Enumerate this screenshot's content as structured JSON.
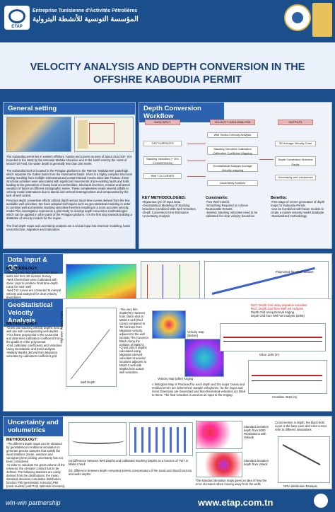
{
  "header": {
    "logo_text": "ETAP",
    "org_fr": "Entreprise Tunisienne d'Activités Pétrolières",
    "org_ar": "المؤسسة التونسية للأنشطة البترولية"
  },
  "title": "VELOCITY ANALYSIS AND DEPTH CONVERSION IN THE OFFSHRE KABOUDIA PERMIT",
  "general": {
    "head": "General setting",
    "p1": "The Kaboudia permit lies in eastern offshore Tunisia and covers an area of about 3154 km². It is bounded to the West by the Monastir-Mahdia shoreline and to the North east by the Horst of Monzel Ol Field, the water depth is generally less than 200 meter.",
    "p2": "The Kaboudia block is located in the Pelagian platform in the NW-SE \"Mahdia-Isis\" paleohigh which separate the Gabes basin from the Hammamet basin. It lies in a highly complex structural setting resulting from multiple extensional and compressional events since late Triassic, these structural activities were associated with significant movements of pre-existing faults and halls leading to the generation of many local unconformities, structural inversion, erosion and lateral variation of facies at different stratigraphic series. These complexities create  several pitfalls in velocity model estimations due to lateral and vertical heterogeneities and compounded by the lack of well control.",
    "p3": "Previous depth conversion efforts utilized depth versus travel time curves derived from the few available well velocities. We have adopted techniques such as geo-statistical modeling in order to combine well and seismic stacking velocities therefore resulting in a more accurate velocity model.This investigation represents a pilot study to develop depth conversion methodologies which can be applied in other parts of the Pelagian platform. It is the first step towards building a database of velocity models for the region.",
    "p4": "The final depth maps and uncertainty analysis are a crucial input into reservoir modeling, basin reconstruction, migration and maturation."
  },
  "workflow": {
    "head": "Depth Conversion Workflow",
    "col_input": "DATA INPUT",
    "col_analysis": "VELOCITY DATA ANALYSIS",
    "col_outputs": "OUTPUTS",
    "in1": "TWT SURFACES",
    "in2": "Stacking Velocities (+ DIX CONVERSION)",
    "in3": "Well T-D CURVES",
    "an1": "Well Section Velocity Analysis",
    "an2": "Stacking Velocities Calibration Calibration Coefficient Mapping",
    "an3": "Geostatistical  Analysis Average Velocity mapping",
    "an4": "Uncertainty Analysis",
    "out1": "3D Average Velocity Cube",
    "out2": "Depth Conversion Horizons Faults",
    "out3": "Uncertainty and volumetrics",
    "key_head": "KEY METHODOLOGIES:",
    "key_items": [
      "-Rigourous QC Of Input Data",
      "-Geostatistical Modeling Of Stacking",
      "Velocities Combined With Well Velocities.",
      "-Depth Conversion Error Estimation",
      "-Uncertainty Analysis"
    ],
    "con_head": "Constraints:",
    "con_items": [
      "-Few Well Control.",
      "-Smoothing Required to Achieve",
      "Reasonable Results.",
      "-Seismic Stacking Velocities need to be",
      "calibrated for clear velocity boundries"
    ],
    "ben_head": "Benefits:",
    "ben_items": [
      "-First stage of orener generation of depth",
      "maps for Kaboudia Permit.",
      "-Can be Combined with future models to",
      "create a master velocity model database.",
      "-Standardized methodology"
    ]
  },
  "dataqc": {
    "head": "Data Input & QC",
    "method_head": "METHODOLOGY:",
    "items": [
      "-Velocity Data was gathered from three wells and from 3D Seismic Survey",
      "-Well Checkshots were Calibrated with Sonic Logs to produce Final time-depth curve for each well",
      "-Well T-D curves are converted to interval velocity and analyzed for clear velocity boundaries",
      "-Check each velocity dataset for errors",
      "-Resampling of datasets to a common TWT interval"
    ],
    "cap1": "2273 T-V pairs loaded in Stacking velocity dataset",
    "cap2": "Well T-D curves are converted to interval velocity and analyzed for clear velocity boundries",
    "cap3": "Compilation of all migration velocities (blue dots) and well velocities (coloured curves)",
    "plot_label": "Polynomial for whole dataset"
  },
  "geostat": {
    "head": "GeoStatistical Velocity Analysis",
    "method_head": "METHODOLOGY:",
    "items": [
      "-Cross plot stacking velocity depths near a well site with corresponding well depths",
      "-Fit a linear polynomial to the cross-plot and determine calibration coefficient from the gradient of the polynomial.",
      "-Grid calibration coefficients and Velocities Using Geostatistic and trend analysis",
      "-Multiply depths derived from Migration velocities by calibration coefficient grid"
    ],
    "well_depth": "Well Depth",
    "mig_depth": "Migration Velocity Depth",
    "note1": "-The very thin depth(TE) Horizons from check shot in Mahd-2 well (Red curve) compared to TE horizons from Migration velocity adjacent to the well location The Curves in Black Along the position of Mahd-2.",
    "note2": "-Cross plot of depths calculated using Migration derived velocities at several locations adjacent to Mahd-2 well with depths from actual well velocities.",
    "map1": "Velocity map (Before)",
    "map2": "Velocity map (after) Kriging",
    "note3": "A histogram Map is Produced for each depth and the major Ocean and residual errors are determined. Sample velogranes, for the major and minor Directions are Generated and then theoretical velocities are fitted to these. The final velocities is used as an input to the Kriging.",
    "legend": [
      "Red : Depth Grid using migration velocities",
      "Red : Depth Grid from Well Vel Analysis",
      "Depth Grid Using Normal Kriging",
      "Depth Grid from Well Vel Analysis (2006)"
    ],
    "inline_cap": "Inline 1249 (m)",
    "cross_cap": "Crossline 4515 (m)"
  },
  "uncertainty": {
    "head": "Uncertainty and volumetrics",
    "method_head": "METHODOLOGY:",
    "items": [
      "-The different depth maps can be obtained by geostatistical conditional simulation to generate precise samples that satisfy the input statistics (mean, variance and variogram),time picking uncertainty has not been considered",
      "-In order to calculate the gross volume of the reservoir, the oil-water contact has to be defined. The following statistics are easily derived from the distributions: the mean, standard deviation,cumulative distribution function P90 (pessimistic scenario),P50 (most realistic) and P10( optimistic scenario)."
    ],
    "cap_a": "(a):Difference between Well Depths and calibrated Stacking Depths as a function of TWT in Mahd-2 Well",
    "cap_b": "(b): difference between depth converted seismic interpretation of the Sand and Abiod horizons and wells depths",
    "map_a": "Standard deviation depth from 5000 Realizations with Variaeb",
    "map_b": "Standard deviation depth from Volack",
    "cap_std": "The standard deviation maps gives an idea of how the error increases when moving away from the wells",
    "cap_cross": "Cross-section in depth, the black bold curve is the base case and color curves refer to different simulations",
    "grv": "GRV distribution Example"
  },
  "footer": {
    "tagline": "win-win partnership",
    "site": "www.etap.com.tn"
  }
}
